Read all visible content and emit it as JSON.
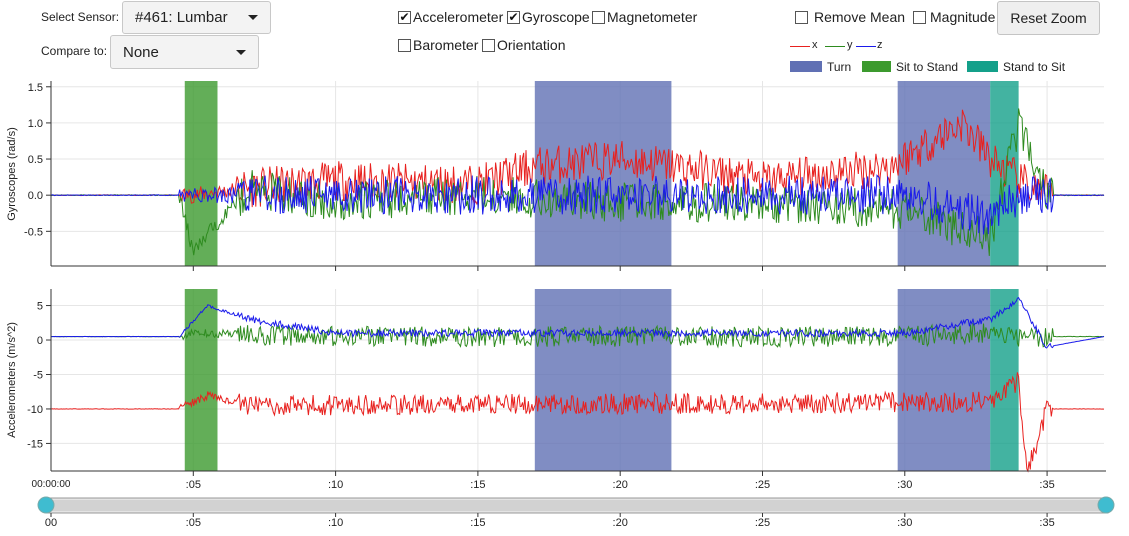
{
  "controls": {
    "select_sensor_label": "Select Sensor:",
    "sensor_value": "#461: Lumbar",
    "compare_label": "Compare to:",
    "compare_value": "None",
    "checkboxes": [
      {
        "label": "Accelerometer",
        "checked": true
      },
      {
        "label": "Gyroscope",
        "checked": true
      },
      {
        "label": "Magnetometer",
        "checked": false
      },
      {
        "label": "Barometer",
        "checked": false
      },
      {
        "label": "Orientation",
        "checked": false
      }
    ],
    "remove_mean": {
      "label": "Remove Mean",
      "checked": false
    },
    "magnitude": {
      "label": "Magnitude",
      "checked": false
    },
    "reset_zoom_label": "Reset Zoom"
  },
  "legend": {
    "axes": [
      {
        "label": "x",
        "color": "#e8211f"
      },
      {
        "label": "y",
        "color": "#2e8b1f"
      },
      {
        "label": "z",
        "color": "#1a1aeb"
      }
    ],
    "events": [
      {
        "label": "Turn",
        "color": "#6070b4"
      },
      {
        "label": "Sit to Stand",
        "color": "#3c9a2e"
      },
      {
        "label": "Stand to Sit",
        "color": "#14a08a"
      }
    ]
  },
  "chart_data": [
    {
      "type": "line",
      "ylabel": "Gyroscopes (rad/s)",
      "ylim": [
        -0.98,
        1.58
      ],
      "yticks": [
        "1.5",
        "1.0",
        "0.5",
        "0.0",
        "-0.5"
      ],
      "ytick_values": [
        1.5,
        1.0,
        0.5,
        0.0,
        -0.5
      ],
      "xlim": [
        0,
        37
      ],
      "grid": true,
      "series": [
        {
          "name": "x",
          "values": [
            [
              0,
              0
            ],
            [
              5,
              0
            ],
            [
              7,
              0.1
            ],
            [
              10,
              0.2
            ],
            [
              15,
              0.15
            ],
            [
              17,
              0.4
            ],
            [
              20,
              0.5
            ],
            [
              22,
              0.4
            ],
            [
              25,
              0.2
            ],
            [
              29.5,
              0.4
            ],
            [
              32,
              1.0
            ],
            [
              33,
              0.5
            ],
            [
              34,
              0.2
            ],
            [
              35,
              0
            ],
            [
              37,
              0
            ]
          ]
        },
        {
          "name": "y",
          "values": [
            [
              0,
              0
            ],
            [
              4.5,
              0
            ],
            [
              5,
              -0.8
            ],
            [
              6,
              -0.3
            ],
            [
              7,
              0.1
            ],
            [
              10,
              -0.1
            ],
            [
              15,
              0
            ],
            [
              20,
              -0.1
            ],
            [
              25,
              -0.1
            ],
            [
              30,
              -0.2
            ],
            [
              33,
              -0.6
            ],
            [
              34,
              1.0
            ],
            [
              35,
              0
            ],
            [
              37,
              0
            ]
          ]
        },
        {
          "name": "z",
          "values": [
            [
              0,
              0
            ],
            [
              5,
              0
            ],
            [
              7,
              0
            ],
            [
              10,
              0
            ],
            [
              15,
              0
            ],
            [
              20,
              0
            ],
            [
              25,
              0
            ],
            [
              30,
              0
            ],
            [
              33,
              -0.3
            ],
            [
              34,
              0
            ],
            [
              35,
              0
            ],
            [
              37,
              0
            ]
          ]
        }
      ]
    },
    {
      "type": "line",
      "ylabel": "Accelerometers (m/s^2)",
      "ylim": [
        -19,
        7.4
      ],
      "yticks": [
        "5",
        "0",
        "-5",
        "-10",
        "-15"
      ],
      "ytick_values": [
        5,
        0,
        -5,
        -10,
        -15
      ],
      "xlim": [
        0,
        37
      ],
      "grid": true,
      "series": [
        {
          "name": "x",
          "values": [
            [
              0,
              -10
            ],
            [
              4.5,
              -10
            ],
            [
              5.5,
              -8
            ],
            [
              7,
              -9.5
            ],
            [
              33,
              -9
            ],
            [
              34,
              -6
            ],
            [
              34.3,
              -19
            ],
            [
              35,
              -10
            ],
            [
              37,
              -10
            ]
          ]
        },
        {
          "name": "y",
          "values": [
            [
              0,
              0.5
            ],
            [
              4.5,
              0.5
            ],
            [
              5,
              1
            ],
            [
              10,
              0.5
            ],
            [
              20,
              0.5
            ],
            [
              30,
              0.5
            ],
            [
              33,
              1
            ],
            [
              34,
              0
            ],
            [
              35,
              0.5
            ],
            [
              37,
              0.5
            ]
          ]
        },
        {
          "name": "z",
          "values": [
            [
              0,
              0.5
            ],
            [
              4.5,
              0.5
            ],
            [
              5.5,
              5
            ],
            [
              7,
              3
            ],
            [
              10,
              1
            ],
            [
              20,
              1
            ],
            [
              30,
              1
            ],
            [
              33,
              3
            ],
            [
              34,
              6
            ],
            [
              35,
              -1
            ],
            [
              37,
              0.5
            ]
          ]
        }
      ]
    }
  ],
  "events": [
    {
      "type": "Sit to Stand",
      "start": 4.7,
      "end": 5.85
    },
    {
      "type": "Turn",
      "start": 17.0,
      "end": 21.8
    },
    {
      "type": "Turn",
      "start": 29.75,
      "end": 33.0
    },
    {
      "type": "Stand to Sit",
      "start": 33.0,
      "end": 34.0
    }
  ],
  "timeline": {
    "start_label": "00:00:00",
    "ticks": [
      ":05",
      ":10",
      ":15",
      ":20",
      ":25",
      ":30",
      ":35"
    ],
    "tick_values": [
      5,
      10,
      15,
      20,
      25,
      30,
      35
    ],
    "slider_ticks": [
      "00",
      ":05",
      ":10",
      ":15",
      ":20",
      ":25",
      ":30",
      ":35"
    ],
    "slider_tick_values": [
      0,
      5,
      10,
      15,
      20,
      25,
      30,
      35
    ]
  }
}
